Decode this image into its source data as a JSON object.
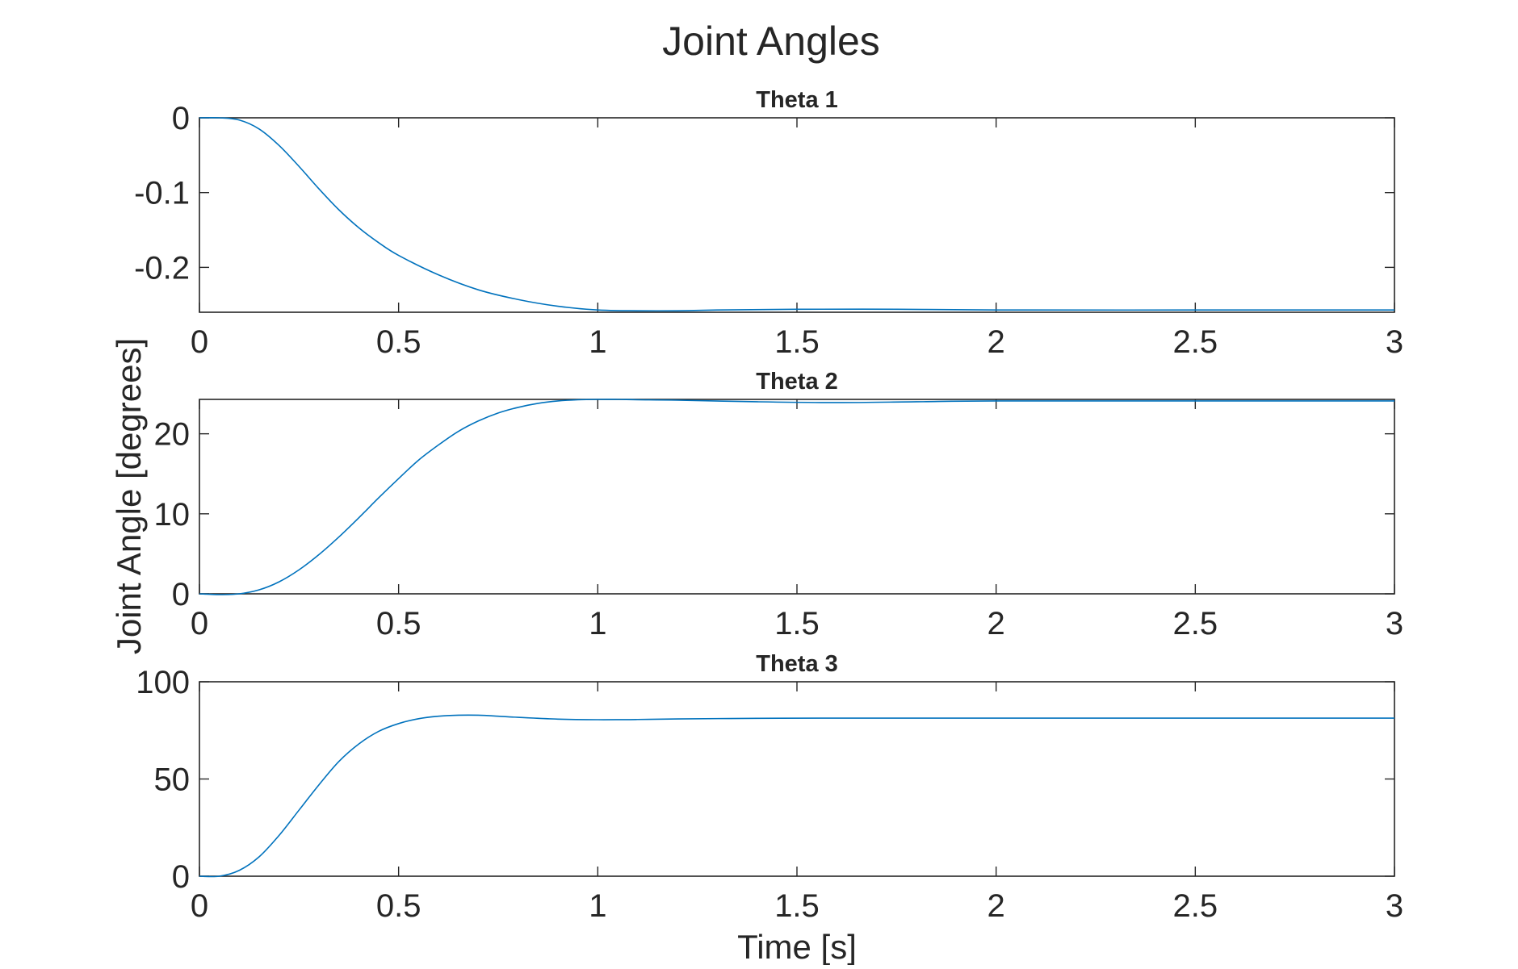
{
  "figure": {
    "title": "Joint Angles",
    "xlabel": "Time [s]",
    "ylabel": "Joint Angle [degrees]"
  },
  "chart_data": [
    {
      "type": "line",
      "title": "Theta 1",
      "xlim": [
        0,
        3
      ],
      "ylim": [
        -0.26,
        0
      ],
      "xticks": [
        0,
        0.5,
        1,
        1.5,
        2,
        2.5,
        3
      ],
      "xtick_labels": [
        "0",
        "0.5",
        "1",
        "1.5",
        "2",
        "2.5",
        "3"
      ],
      "yticks": [
        -0.2,
        -0.1,
        0
      ],
      "ytick_labels": [
        "-0.2",
        "-0.1",
        "0"
      ],
      "color": "#0072BD",
      "series": [
        {
          "x": [
            0,
            0.05,
            0.1,
            0.15,
            0.2,
            0.25,
            0.3,
            0.35,
            0.4,
            0.45,
            0.5,
            0.6,
            0.7,
            0.8,
            0.9,
            1.0,
            1.1,
            1.2,
            1.3,
            1.5,
            1.75,
            2.0,
            2.5,
            3.0
          ],
          "y": [
            0,
            0,
            -0.003,
            -0.015,
            -0.037,
            -0.065,
            -0.095,
            -0.123,
            -0.147,
            -0.167,
            -0.184,
            -0.21,
            -0.23,
            -0.243,
            -0.252,
            -0.257,
            -0.258,
            -0.258,
            -0.257,
            -0.256,
            -0.256,
            -0.257,
            -0.257,
            -0.257
          ]
        }
      ]
    },
    {
      "type": "line",
      "title": "Theta 2",
      "xlim": [
        0,
        3
      ],
      "ylim": [
        0,
        24.3
      ],
      "xticks": [
        0,
        0.5,
        1,
        1.5,
        2,
        2.5,
        3
      ],
      "xtick_labels": [
        "0",
        "0.5",
        "1",
        "1.5",
        "2",
        "2.5",
        "3"
      ],
      "yticks": [
        0,
        10,
        20
      ],
      "ytick_labels": [
        "0",
        "10",
        "20"
      ],
      "color": "#0072BD",
      "series": [
        {
          "x": [
            0,
            0.05,
            0.1,
            0.15,
            0.2,
            0.25,
            0.3,
            0.35,
            0.4,
            0.45,
            0.5,
            0.55,
            0.6,
            0.65,
            0.7,
            0.75,
            0.8,
            0.85,
            0.9,
            0.95,
            1.0,
            1.05,
            1.1,
            1.2,
            1.4,
            1.6,
            1.8,
            2.0,
            2.5,
            3.0
          ],
          "y": [
            0,
            -0.1,
            0,
            0.5,
            1.5,
            3.0,
            4.9,
            7.1,
            9.5,
            12.0,
            14.4,
            16.7,
            18.6,
            20.3,
            21.6,
            22.6,
            23.3,
            23.8,
            24.1,
            24.25,
            24.3,
            24.3,
            24.25,
            24.2,
            24.0,
            23.9,
            24.0,
            24.1,
            24.1,
            24.1
          ]
        }
      ]
    },
    {
      "type": "line",
      "title": "Theta 3",
      "xlim": [
        0,
        3
      ],
      "ylim": [
        0,
        100
      ],
      "xticks": [
        0,
        0.5,
        1,
        1.5,
        2,
        2.5,
        3
      ],
      "xtick_labels": [
        "0",
        "0.5",
        "1",
        "1.5",
        "2",
        "2.5",
        "3"
      ],
      "yticks": [
        0,
        50,
        100
      ],
      "ytick_labels": [
        "0",
        "50",
        "100"
      ],
      "color": "#0072BD",
      "series": [
        {
          "x": [
            0,
            0.05,
            0.1,
            0.15,
            0.2,
            0.25,
            0.3,
            0.35,
            0.4,
            0.45,
            0.5,
            0.55,
            0.6,
            0.65,
            0.7,
            0.75,
            0.8,
            0.9,
            1.0,
            1.1,
            1.2,
            1.4,
            1.6,
            2.0,
            2.5,
            3.0
          ],
          "y": [
            0,
            0,
            3,
            10,
            21,
            34,
            47,
            59,
            68,
            74.5,
            78.5,
            81,
            82.3,
            82.8,
            82.8,
            82.3,
            81.7,
            80.8,
            80.5,
            80.6,
            80.9,
            81.2,
            81.3,
            81.3,
            81.3,
            81.3
          ]
        }
      ]
    }
  ]
}
